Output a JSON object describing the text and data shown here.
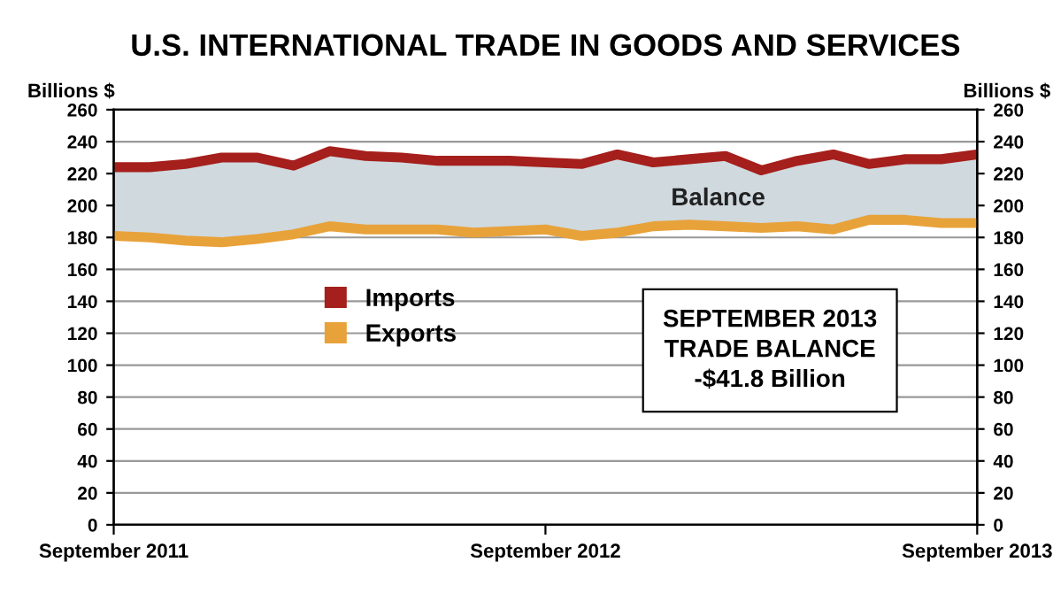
{
  "chart_data": {
    "type": "line",
    "title": "U.S. INTERNATIONAL TRADE IN GOODS AND SERVICES",
    "ylabel": "Billions $",
    "y2label": "Billions $",
    "x": [
      "2011-09",
      "2011-10",
      "2011-11",
      "2011-12",
      "2012-01",
      "2012-02",
      "2012-03",
      "2012-04",
      "2012-05",
      "2012-06",
      "2012-07",
      "2012-08",
      "2012-09",
      "2012-10",
      "2012-11",
      "2012-12",
      "2013-01",
      "2013-02",
      "2013-03",
      "2013-04",
      "2013-05",
      "2013-06",
      "2013-07",
      "2013-08",
      "2013-09"
    ],
    "series": [
      {
        "name": "Imports",
        "color": "#a51f1c",
        "values": [
          224,
          224,
          226,
          230,
          230,
          225,
          234,
          231,
          230,
          228,
          228,
          228,
          227,
          226,
          232,
          227,
          229,
          231,
          222,
          228,
          232,
          226,
          229,
          229,
          232
        ]
      },
      {
        "name": "Exports",
        "color": "#e8a23a",
        "values": [
          181,
          180,
          178,
          177,
          179,
          182,
          187,
          185,
          185,
          185,
          183,
          184,
          185,
          181,
          183,
          187,
          188,
          187,
          186,
          187,
          185,
          191,
          191,
          189,
          189
        ],
        "lower": [
          181,
          180,
          178,
          177,
          179,
          182,
          187,
          185,
          185,
          185,
          183,
          184,
          185,
          181,
          183,
          187,
          188,
          187,
          186,
          187,
          185,
          191,
          191,
          189,
          189
        ],
        "upper": [
          224,
          224,
          226,
          230,
          230,
          225,
          234,
          231,
          230,
          228,
          228,
          228,
          227,
          226,
          232,
          227,
          229,
          231,
          222,
          228,
          232,
          226,
          229,
          229,
          232
        ]
      }
    ],
    "annotations": [
      "SEPTEMBER 2013\nTRADE BALANCE\n-$41.8 Billion",
      "Balance"
    ],
    "ylim": [
      0,
      260
    ],
    "yticks": [
      0,
      20,
      40,
      60,
      80,
      100,
      120,
      140,
      160,
      180,
      200,
      220,
      240,
      260
    ],
    "y2lim": [
      0,
      260
    ],
    "y2ticks": [
      0,
      20,
      40,
      60,
      80,
      100,
      120,
      140,
      160,
      180,
      200,
      220,
      240,
      260
    ],
    "xlim": [
      "2011-09",
      "2013-09"
    ],
    "xticks": [
      {
        "value": "2011-09",
        "label": "September 2011"
      },
      {
        "value": "2012-09",
        "label": "September 2012"
      },
      {
        "value": "2013-09",
        "label": "September 2013"
      }
    ],
    "grid": "y",
    "legend": "center left",
    "marker": "none",
    "line_style": "solid"
  }
}
